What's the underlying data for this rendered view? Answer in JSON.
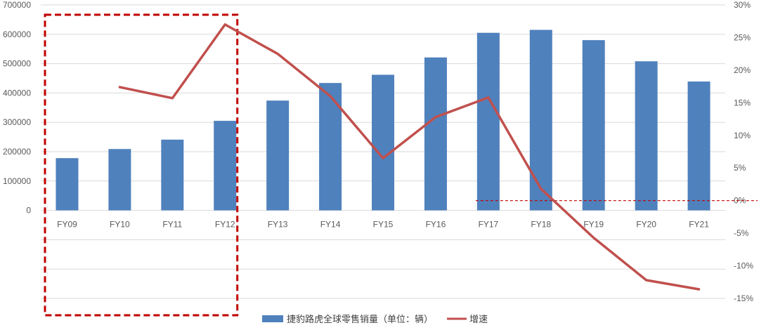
{
  "chart_data": {
    "type": "bar",
    "categories": [
      "FY09",
      "FY10",
      "FY11",
      "FY12",
      "FY13",
      "FY14",
      "FY15",
      "FY16",
      "FY17",
      "FY18",
      "FY19",
      "FY20",
      "FY21"
    ],
    "series": [
      {
        "name": "捷豹路虎全球零售销量（单位：辆）",
        "type": "bar",
        "axis": "left",
        "color": "#4f81bd",
        "values": [
          178000,
          209000,
          241000,
          305000,
          374000,
          434000,
          462000,
          521000,
          605000,
          615000,
          580000,
          508000,
          439000
        ]
      },
      {
        "name": "增速",
        "type": "line",
        "axis": "right",
        "color": "#c0504d",
        "values": [
          null,
          17.4,
          15.7,
          27.0,
          22.5,
          16.0,
          6.5,
          12.8,
          15.8,
          1.8,
          -5.7,
          -12.2,
          -13.6
        ]
      }
    ],
    "y_left": {
      "min": -300000,
      "max": 700000,
      "ticks": [
        700000,
        600000,
        500000,
        400000,
        300000,
        200000,
        100000,
        0
      ],
      "tick_labels": [
        "700000",
        "600000",
        "500000",
        "400000",
        "300000",
        "200000",
        "100000",
        "0"
      ]
    },
    "y_right": {
      "min": -15,
      "max": 30,
      "ticks": [
        30,
        25,
        20,
        15,
        10,
        5,
        0,
        -5,
        -10,
        -15
      ],
      "tick_labels": [
        "30%",
        "25%",
        "20%",
        "15%",
        "10%",
        "5%",
        "0%",
        "-5%",
        "-10%",
        "-15%"
      ]
    },
    "gridlines": true,
    "legend_position": "bottom",
    "annotations": {
      "highlight_box": {
        "from_category": "FY09",
        "to_category": "FY12",
        "color": "#c00000",
        "style": "dashed"
      },
      "zero_growth_line": {
        "from_category": "FY17",
        "axis": "right",
        "value": 0,
        "color": "#c00000",
        "style": "dashed"
      }
    }
  }
}
